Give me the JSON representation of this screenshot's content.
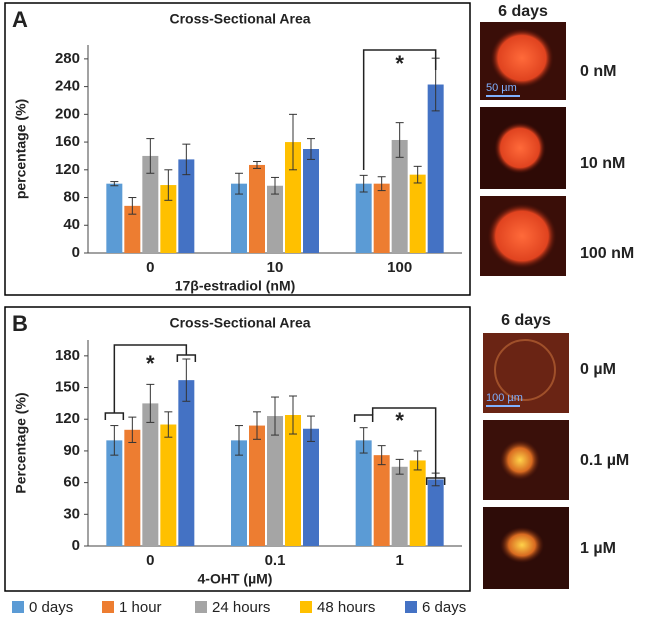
{
  "chart_data": [
    {
      "type": "bar",
      "panel": "A",
      "title": "Cross-Sectional Area",
      "x_label": "17β-estradiol (nM)",
      "y_label": "percentage (%)",
      "categories": [
        "0",
        "10",
        "100"
      ],
      "ylim": [
        0,
        300
      ],
      "yticks": [
        0,
        40,
        80,
        120,
        160,
        200,
        240,
        280
      ],
      "series": [
        {
          "name": "0 days",
          "color": "#5b9bd5",
          "values": [
            100,
            100,
            100
          ],
          "errors": [
            3,
            15,
            12
          ]
        },
        {
          "name": "1 hour",
          "color": "#ed7d31",
          "values": [
            68,
            127,
            100
          ],
          "errors": [
            12,
            5,
            10
          ]
        },
        {
          "name": "24 hours",
          "color": "#a5a5a5",
          "values": [
            140,
            97,
            163
          ],
          "errors": [
            25,
            12,
            25
          ]
        },
        {
          "name": "48 hours",
          "color": "#ffc000",
          "values": [
            98,
            160,
            113
          ],
          "errors": [
            22,
            40,
            12
          ]
        },
        {
          "name": "6 days",
          "color": "#4472c4",
          "values": [
            135,
            150,
            243
          ],
          "errors": [
            22,
            15,
            38
          ]
        }
      ],
      "annotations": [
        "*"
      ]
    },
    {
      "type": "bar",
      "panel": "B",
      "title": "Cross-Sectional Area",
      "x_label": "4-OHT (µM)",
      "y_label": "Percentage (%)",
      "categories": [
        "0",
        "0.1",
        "1"
      ],
      "ylim": [
        0,
        195
      ],
      "yticks": [
        0,
        30,
        60,
        90,
        120,
        150,
        180
      ],
      "series": [
        {
          "color": "#5b9bd5",
          "values": [
            100,
            100,
            100
          ],
          "errors": [
            14,
            14,
            12
          ]
        },
        {
          "color": "#ed7d31",
          "values": [
            110,
            114,
            86
          ],
          "errors": [
            12,
            13,
            9
          ]
        },
        {
          "color": "#a5a5a5",
          "values": [
            135,
            123,
            75
          ],
          "errors": [
            18,
            18,
            7
          ]
        },
        {
          "color": "#ffc000",
          "values": [
            115,
            124,
            81
          ],
          "errors": [
            12,
            18,
            9
          ]
        },
        {
          "color": "#4472c4",
          "values": [
            157,
            111,
            63
          ],
          "errors": [
            20,
            12,
            6
          ]
        }
      ],
      "annotations": [
        "*",
        "*"
      ]
    }
  ],
  "micrographs": [
    {
      "title": "6 days",
      "scale_bar": "50 µm",
      "labels": [
        "0 nM",
        "10 nM",
        "100 nM"
      ]
    },
    {
      "title": "6 days",
      "scale_bar": "100 µm",
      "labels": [
        "0 µM",
        "0.1 µM",
        "1 µM"
      ]
    }
  ]
}
